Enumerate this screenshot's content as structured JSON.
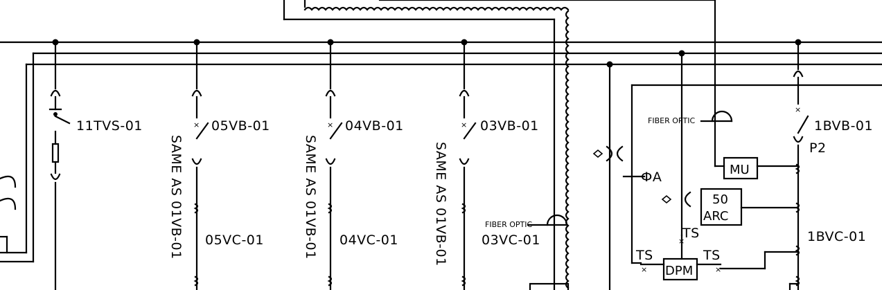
{
  "labels": {
    "tvs": "11TVS-01",
    "b05": "05VB-01",
    "b04": "04VB-01",
    "b03": "03VB-01",
    "c05": "05VC-01",
    "c04": "04VC-01",
    "c03": "03VC-01",
    "same1": "SAME AS 01VB-01",
    "same2": "SAME AS 01VB-01",
    "same3": "SAME AS 01VB-01",
    "fo_left": "FIBER OPTIC",
    "fo_right": "FIBER OPTIC",
    "phase": "ФA",
    "b01": "1BVB-01",
    "p2": "P2",
    "c01": "1BVC-01",
    "ts1": "TS",
    "ts2": "TS",
    "ts3": "TS"
  },
  "boxes": {
    "mu": "MU",
    "arc_top": "50",
    "arc_bot": "ARC",
    "dpm": "DPM"
  }
}
